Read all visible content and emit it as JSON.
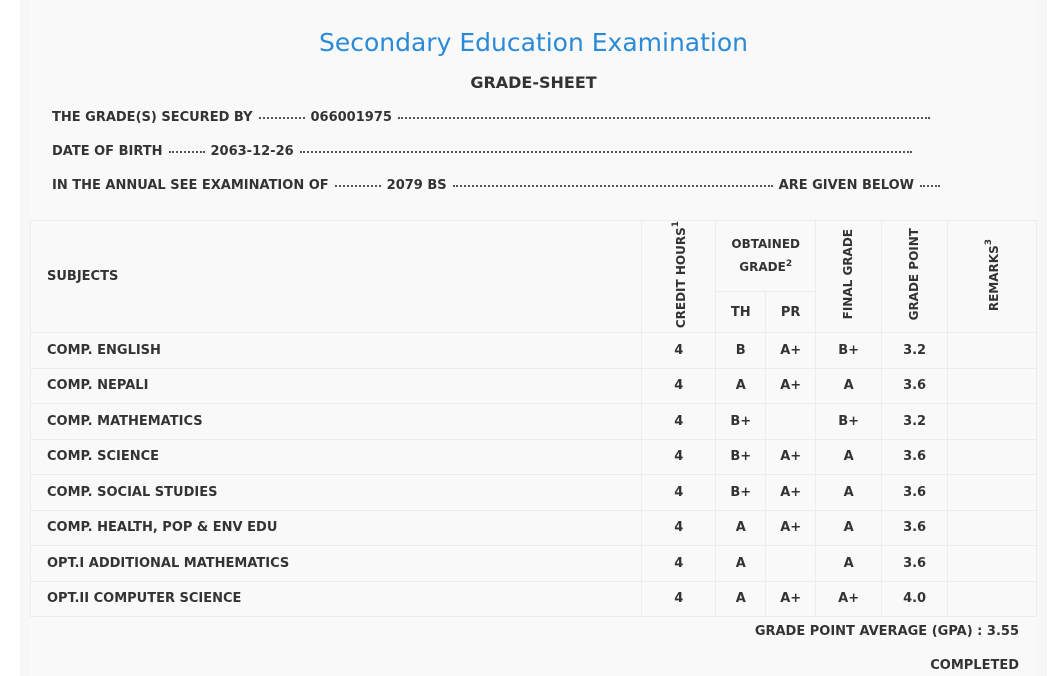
{
  "header": {
    "title": "Secondary Education Examination",
    "subtitle": "GRADE-SHEET"
  },
  "info": [
    {
      "label": "THE GRADE(S) SECURED BY",
      "value": "066001975"
    },
    {
      "label": "DATE OF BIRTH",
      "value": "2063-12-26"
    },
    {
      "label": "IN THE ANNUAL SEE EXAMINATION OF",
      "value": "2079 BS",
      "suffix": "ARE GIVEN BELOW"
    }
  ],
  "table": {
    "headers": {
      "subjects": "SUBJECTS",
      "credit_hours": "CREDIT HOURS",
      "credit_note": "1",
      "obtained_grade": "OBTAINED GRADE",
      "grade_note": "2",
      "th": "TH",
      "pr": "PR",
      "final_grade": "FINAL GRADE",
      "grade_point": "GRADE POINT",
      "remarks": "REMARKS",
      "remarks_note": "3"
    },
    "rows": [
      [
        "COMP. ENGLISH",
        "4",
        "B",
        "A+",
        "B+",
        "3.2"
      ],
      [
        "COMP. NEPALI",
        "4",
        "A",
        "A+",
        "A",
        "3.6"
      ],
      [
        "COMP. MATHEMATICS",
        "4",
        "B+",
        null,
        "B+",
        "3.2"
      ],
      [
        "COMP. SCIENCE",
        "4",
        "B+",
        "A+",
        "A",
        "3.6"
      ],
      [
        "COMP. SOCIAL STUDIES",
        "4",
        "B+",
        "A+",
        "A",
        "3.6"
      ],
      [
        "COMP. HEALTH, POP & ENV EDU",
        "4",
        "A",
        "A+",
        "A",
        "3.6"
      ],
      [
        "OPT.I ADDITIONAL MATHEMATICS",
        "4",
        "A",
        null,
        "A",
        "3.6"
      ],
      [
        "OPT.II COMPUTER SCIENCE",
        "4",
        "A",
        "A+",
        "A+",
        "4.0"
      ]
    ]
  },
  "footer": {
    "gpa_label": "GRADE POINT AVERAGE (GPA) :",
    "gpa": "3.55",
    "status": "COMPLETED"
  }
}
